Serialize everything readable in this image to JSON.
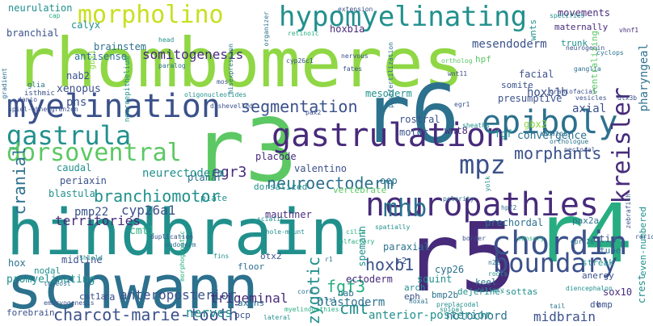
{
  "words": [
    {
      "t": "rhombomeres",
      "c": 7
    },
    {
      "t": "hindbrain",
      "c": 4
    },
    {
      "t": "schwann",
      "c": 3
    },
    {
      "t": "r5",
      "c": 1
    },
    {
      "t": "r3",
      "c": 6
    },
    {
      "t": "r6",
      "c": 3
    },
    {
      "t": "r4",
      "c": 5
    },
    {
      "t": "neuropathies",
      "c": 1
    },
    {
      "t": "myelination",
      "c": 2
    },
    {
      "t": "gastrulation",
      "c": 1
    },
    {
      "t": "chordin",
      "c": 2
    },
    {
      "t": "hypomyelinating",
      "c": 4
    },
    {
      "t": "epiboly",
      "c": 3
    },
    {
      "t": "gastrula",
      "c": 4
    },
    {
      "t": "dorsoventral",
      "c": 6
    },
    {
      "t": "morpholino",
      "c": 8
    },
    {
      "t": "boundary",
      "c": 2
    },
    {
      "t": "mpz",
      "c": 2
    },
    {
      "t": "mhb",
      "c": 3
    },
    {
      "t": "kreisler",
      "c": 1
    },
    {
      "t": "neuroectoderm",
      "c": 3
    },
    {
      "t": "branchiomotor",
      "c": 4
    },
    {
      "t": "segmentation",
      "c": 2
    },
    {
      "t": "charcot-marie-tooth",
      "c": 2
    },
    {
      "t": "somitogenesis",
      "c": 1
    },
    {
      "t": "morphants",
      "c": 2
    },
    {
      "t": "cmt",
      "c": 4
    },
    {
      "t": "hoxb1",
      "c": 2
    },
    {
      "t": "anteroposterior",
      "c": 2
    },
    {
      "t": "fgf3",
      "c": 5
    },
    {
      "t": "egr3",
      "c": 1
    },
    {
      "t": "neurectoderm",
      "c": 4
    },
    {
      "t": "cranial",
      "c": 3
    },
    {
      "t": "zygotic",
      "c": 4
    },
    {
      "t": "territories",
      "c": 1
    },
    {
      "t": "cyp26a1",
      "c": 2
    },
    {
      "t": "pmp22",
      "c": 2
    },
    {
      "t": "nerves",
      "c": 4
    },
    {
      "t": "trigeminal",
      "c": 1
    },
    {
      "t": "notochord",
      "c": 3
    },
    {
      "t": "midbrain",
      "c": 2
    },
    {
      "t": "blastoderm",
      "c": 3
    },
    {
      "t": "anterior-posterior",
      "c": 4
    },
    {
      "t": "mesendoderm",
      "c": 2
    },
    {
      "t": "hoxb1b",
      "c": 2
    },
    {
      "t": "hoxb1a",
      "c": 1
    },
    {
      "t": "movements",
      "c": 1
    },
    {
      "t": "maternally",
      "c": 1
    },
    {
      "t": "axial",
      "c": 2
    },
    {
      "t": "pharyngeal",
      "c": 3
    },
    {
      "t": "pns",
      "c": 2
    },
    {
      "t": "xenopus",
      "c": 2
    },
    {
      "t": "brainstem",
      "c": 3
    },
    {
      "t": "calyx",
      "c": 4
    },
    {
      "t": "antisense",
      "c": 3
    },
    {
      "t": "branchial",
      "c": 2
    },
    {
      "t": "neurulation",
      "c": 4
    },
    {
      "t": "nab2",
      "c": 2
    },
    {
      "t": "gbx2",
      "c": 7
    },
    {
      "t": "convergence",
      "c": 3
    },
    {
      "t": "fgf",
      "c": 4
    },
    {
      "t": "wnt8",
      "c": 1
    },
    {
      "t": "facial",
      "c": 2
    },
    {
      "t": "presumptive",
      "c": 2
    },
    {
      "t": "placode",
      "c": 1
    },
    {
      "t": "planar",
      "c": 3
    },
    {
      "t": "valentino",
      "c": 2
    },
    {
      "t": "dorsalized",
      "c": 4
    },
    {
      "t": "plate",
      "c": 4
    },
    {
      "t": "rostral",
      "c": 2
    },
    {
      "t": "motor",
      "c": 2
    },
    {
      "t": "oep",
      "c": 3
    },
    {
      "t": "otic",
      "c": 2
    },
    {
      "t": "tube",
      "c": 3
    },
    {
      "t": "streak",
      "c": 4
    },
    {
      "t": "sox10",
      "c": 1
    },
    {
      "t": "bmp",
      "c": 2
    },
    {
      "t": "dv",
      "c": 2
    },
    {
      "t": "crest",
      "c": 4
    },
    {
      "t": "promyelinating",
      "c": 4
    },
    {
      "t": "forebrain",
      "c": 2
    },
    {
      "t": "ra",
      "c": 2
    },
    {
      "t": "cmt1a",
      "c": 2
    },
    {
      "t": "axons",
      "c": 3
    },
    {
      "t": "pcp",
      "c": 2
    },
    {
      "t": "floor",
      "c": 3
    },
    {
      "t": "otx2",
      "c": 2
    },
    {
      "t": "mauthner",
      "c": 1
    },
    {
      "t": "ectoderm",
      "c": 1
    },
    {
      "t": "nab",
      "c": 3
    },
    {
      "t": "arch",
      "c": 4
    },
    {
      "t": "eph",
      "c": 2
    },
    {
      "t": "squint",
      "c": 4
    },
    {
      "t": "bmp2b",
      "c": 3
    },
    {
      "t": "dejerine-sottas",
      "c": 4
    },
    {
      "t": "keel",
      "c": 3
    },
    {
      "t": "r2",
      "c": 2
    },
    {
      "t": "paraxial",
      "c": 3
    },
    {
      "t": "cyp26",
      "c": 3
    },
    {
      "t": "spemann",
      "c": 4
    },
    {
      "t": "nodal",
      "c": 4
    },
    {
      "t": "midline",
      "c": 2
    },
    {
      "t": "hox",
      "c": 3
    },
    {
      "t": "cmt1",
      "c": 5
    },
    {
      "t": "periaxin",
      "c": 2
    },
    {
      "t": "blastula",
      "c": 4
    },
    {
      "t": "caudal",
      "c": 4
    },
    {
      "t": "mesoderm",
      "c": 4
    },
    {
      "t": "somite",
      "c": 2
    },
    {
      "t": "hpf",
      "c": 6
    },
    {
      "t": "wnts",
      "c": 4
    },
    {
      "t": "vertebrate",
      "c": 6
    },
    {
      "t": "prechordal",
      "c": 3
    },
    {
      "t": "pax2a",
      "c": 3
    },
    {
      "t": "anergy",
      "c": 2
    },
    {
      "t": "even-numbered",
      "c": 4
    },
    {
      "t": "trunk",
      "c": 4
    },
    {
      "t": "ventralizing",
      "c": 6
    },
    {
      "t": "gbx1",
      "c": 7
    },
    {
      "t": "neuroepithelium",
      "c": 4
    },
    {
      "t": "isthmic",
      "c": 2
    },
    {
      "t": "glia",
      "c": 3
    },
    {
      "t": "spiel-ohne-grenzen",
      "c": 2
    },
    {
      "t": "danio",
      "c": 2
    },
    {
      "t": "cap",
      "c": 5
    },
    {
      "t": "head",
      "c": 4
    },
    {
      "t": "paralog",
      "c": 3
    },
    {
      "t": "cyp26c1",
      "c": 2
    },
    {
      "t": "misexpression",
      "c": 3
    },
    {
      "t": "extension",
      "c": 2
    },
    {
      "t": "organizer",
      "c": 3
    },
    {
      "t": "retinoic",
      "c": 5
    },
    {
      "t": "nervous",
      "c": 2
    },
    {
      "t": "fates",
      "c": 2
    },
    {
      "t": "ortholog",
      "c": 6
    },
    {
      "t": "wnt11",
      "c": 2
    },
    {
      "t": "egr1",
      "c": 2
    },
    {
      "t": "craniofacial",
      "c": 2
    },
    {
      "t": "ganglia",
      "c": 3
    },
    {
      "t": "vesicles",
      "c": 2
    },
    {
      "t": "dlx3b",
      "c": 2
    },
    {
      "t": "cyclops",
      "c": 3
    },
    {
      "t": "specifies",
      "c": 4
    },
    {
      "t": "vhnf1",
      "c": 1
    },
    {
      "t": "neurogenin",
      "c": 2
    },
    {
      "t": "sheaths",
      "c": 4
    },
    {
      "t": "auditory",
      "c": 3
    },
    {
      "t": "yolk",
      "c": 4
    },
    {
      "t": "polarity",
      "c": 3
    },
    {
      "t": "border",
      "c": 2
    },
    {
      "t": "zebrafish",
      "c": 2
    },
    {
      "t": "pectoral",
      "c": 2
    },
    {
      "t": "orthologue",
      "c": 3
    },
    {
      "t": "duplication",
      "c": 2
    },
    {
      "t": "endoderm",
      "c": 3
    },
    {
      "t": "whole-mount",
      "c": 4
    },
    {
      "t": "cilia",
      "c": 5
    },
    {
      "t": "spatially",
      "c": 4
    },
    {
      "t": "teleost",
      "c": 3
    },
    {
      "t": "shield",
      "c": 4
    },
    {
      "t": "morphogenetic",
      "c": 5
    },
    {
      "t": "fins",
      "c": 4
    },
    {
      "t": "dishevelled",
      "c": 2
    },
    {
      "t": "ciliary",
      "c": 4
    },
    {
      "t": "roots",
      "c": 4
    },
    {
      "t": "tail",
      "c": 3
    },
    {
      "t": "preplacodal",
      "c": 4
    },
    {
      "t": "hoxa1",
      "c": 3
    },
    {
      "t": "cord",
      "c": 3
    },
    {
      "t": "embryogenesis",
      "c": 2
    },
    {
      "t": "lateral",
      "c": 4
    },
    {
      "t": "myelinopathies",
      "c": 5
    },
    {
      "t": "diencephalon",
      "c": 4
    },
    {
      "t": "sensory",
      "c": 5
    },
    {
      "t": "gpr126",
      "c": 3
    },
    {
      "t": "rerio",
      "c": 2
    },
    {
      "t": "pax2",
      "c": 2
    },
    {
      "t": "gradient",
      "c": 3
    },
    {
      "t": "oligonucleotides",
      "c": 4
    },
    {
      "t": "mos",
      "c": 2
    },
    {
      "t": "postfertilization",
      "c": 3
    },
    {
      "t": "sciatic",
      "c": 4
    },
    {
      "t": "olfactory",
      "c": 5
    },
    {
      "t": "ysl",
      "c": 3
    },
    {
      "t": "r1",
      "c": 3
    },
    {
      "t": "spinal",
      "c": 4
    },
    {
      "t": "n2e",
      "c": 3
    },
    {
      "t": "hpf2",
      "c": 3
    }
  ]
}
